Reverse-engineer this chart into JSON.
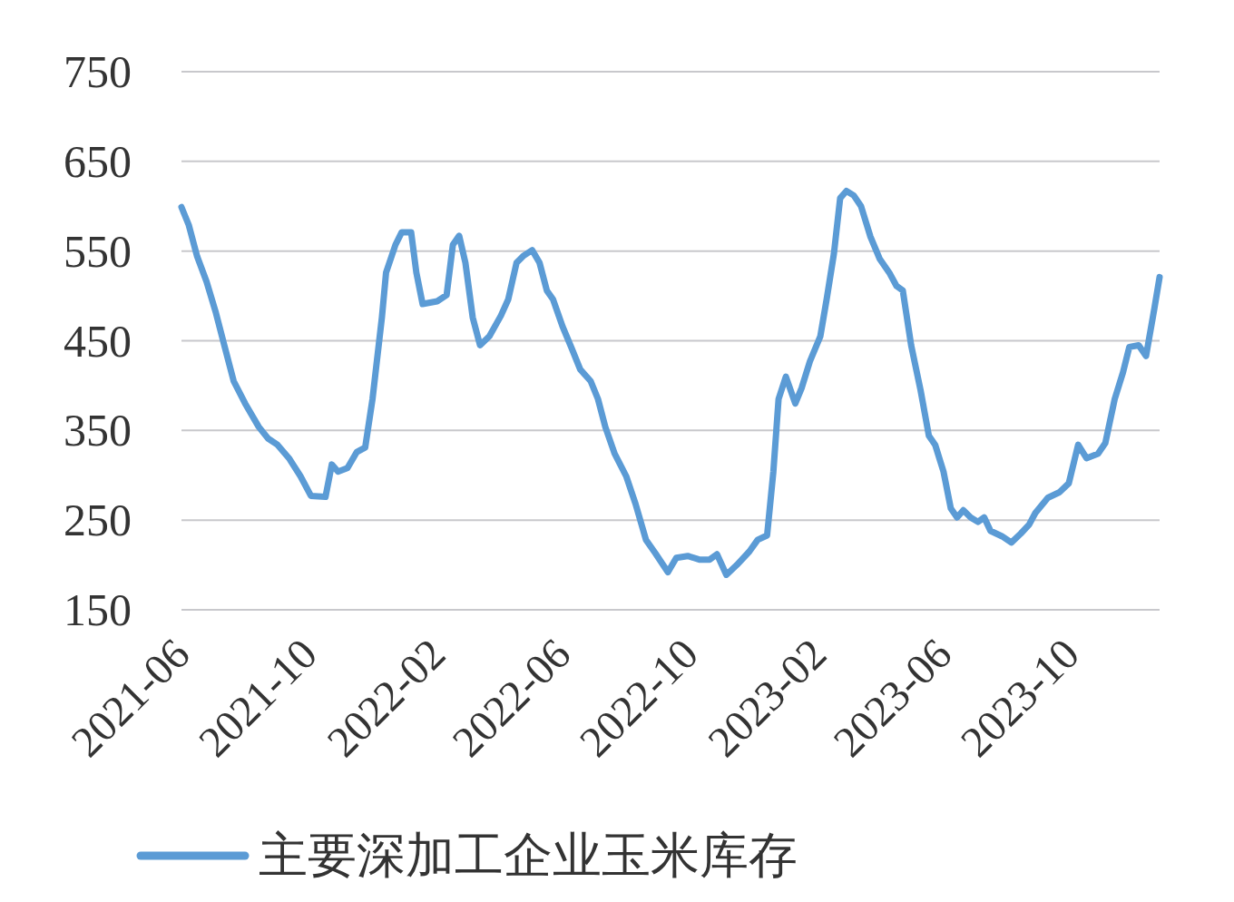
{
  "chart_data": {
    "type": "line",
    "xlim": [
      "2021-06-01",
      "2023-12-25"
    ],
    "xticks": [
      "2021-06",
      "2021-10",
      "2022-02",
      "2022-06",
      "2022-10",
      "2023-02",
      "2023-06",
      "2023-10"
    ],
    "ylim": [
      150,
      750
    ],
    "yticks": [
      150,
      250,
      350,
      450,
      550,
      650,
      750
    ],
    "grid": "y",
    "legend": "bottom",
    "marker": "none",
    "line_style": "solid",
    "series": [
      {
        "name": "主要深加工企业玉米库存",
        "color": "#5b9bd5",
        "x": [
          "2021-06-01",
          "2021-06-08",
          "2021-06-16",
          "2021-06-25",
          "2021-07-04",
          "2021-07-12",
          "2021-07-21",
          "2021-08-01",
          "2021-08-14",
          "2021-08-23",
          "2021-09-01",
          "2021-09-12",
          "2021-09-23",
          "2021-10-03",
          "2021-10-17",
          "2021-10-23",
          "2021-10-29",
          "2021-11-07",
          "2021-11-16",
          "2021-11-24",
          "2021-12-01",
          "2021-12-10",
          "2021-12-14",
          "2021-12-23",
          "2021-12-29",
          "2022-01-07",
          "2022-01-12",
          "2022-01-18",
          "2022-02-01",
          "2022-02-10",
          "2022-02-16",
          "2022-02-22",
          "2022-02-28",
          "2022-03-07",
          "2022-03-14",
          "2022-03-23",
          "2022-04-03",
          "2022-04-10",
          "2022-04-18",
          "2022-04-25",
          "2022-05-03",
          "2022-05-10",
          "2022-05-17",
          "2022-05-23",
          "2022-06-01",
          "2022-06-10",
          "2022-06-18",
          "2022-06-28",
          "2022-07-05",
          "2022-07-12",
          "2022-07-21",
          "2022-08-01",
          "2022-08-10",
          "2022-08-20",
          "2022-08-29",
          "2022-09-10",
          "2022-09-18",
          "2022-09-29",
          "2022-10-10",
          "2022-10-20",
          "2022-10-27",
          "2022-11-05",
          "2022-11-15",
          "2022-11-27",
          "2022-12-05",
          "2022-12-14",
          "2022-12-20",
          "2022-12-25",
          "2023-01-01",
          "2023-01-10",
          "2023-01-16",
          "2023-01-24",
          "2023-02-03",
          "2023-02-09",
          "2023-02-16",
          "2023-02-22",
          "2023-02-28",
          "2023-03-07",
          "2023-03-14",
          "2023-03-23",
          "2023-04-01",
          "2023-04-10",
          "2023-04-17",
          "2023-04-23",
          "2023-05-01",
          "2023-05-10",
          "2023-05-18",
          "2023-05-24",
          "2023-06-01",
          "2023-06-08",
          "2023-06-14",
          "2023-06-20",
          "2023-06-27",
          "2023-07-04",
          "2023-07-10",
          "2023-07-16",
          "2023-07-27",
          "2023-08-05",
          "2023-08-14",
          "2023-08-22",
          "2023-08-28",
          "2023-09-09",
          "2023-09-20",
          "2023-09-29",
          "2023-10-08",
          "2023-10-16",
          "2023-10-27",
          "2023-11-03",
          "2023-11-12",
          "2023-11-20",
          "2023-11-26",
          "2023-12-05",
          "2023-12-12",
          "2023-12-20",
          "2023-12-25"
        ],
        "values": [
          599,
          579,
          544,
          516,
          481,
          445,
          405,
          380,
          354,
          341,
          334,
          319,
          299,
          277,
          276,
          312,
          304,
          308,
          326,
          331,
          385,
          476,
          526,
          557,
          571,
          571,
          526,
          491,
          494,
          501,
          557,
          567,
          537,
          476,
          445,
          455,
          478,
          496,
          537,
          545,
          551,
          537,
          506,
          496,
          466,
          441,
          418,
          405,
          385,
          354,
          324,
          299,
          268,
          228,
          213,
          192,
          208,
          210,
          206,
          206,
          212,
          189,
          200,
          215,
          228,
          233,
          304,
          385,
          410,
          380,
          397,
          427,
          455,
          496,
          547,
          609,
          617,
          612,
          600,
          566,
          541,
          526,
          511,
          506,
          445,
          395,
          344,
          334,
          304,
          263,
          253,
          261,
          253,
          248,
          253,
          238,
          232,
          225,
          235,
          245,
          258,
          275,
          281,
          291,
          334,
          319,
          324,
          336,
          385,
          415,
          443,
          445,
          433,
          486,
          521
        ]
      }
    ]
  }
}
